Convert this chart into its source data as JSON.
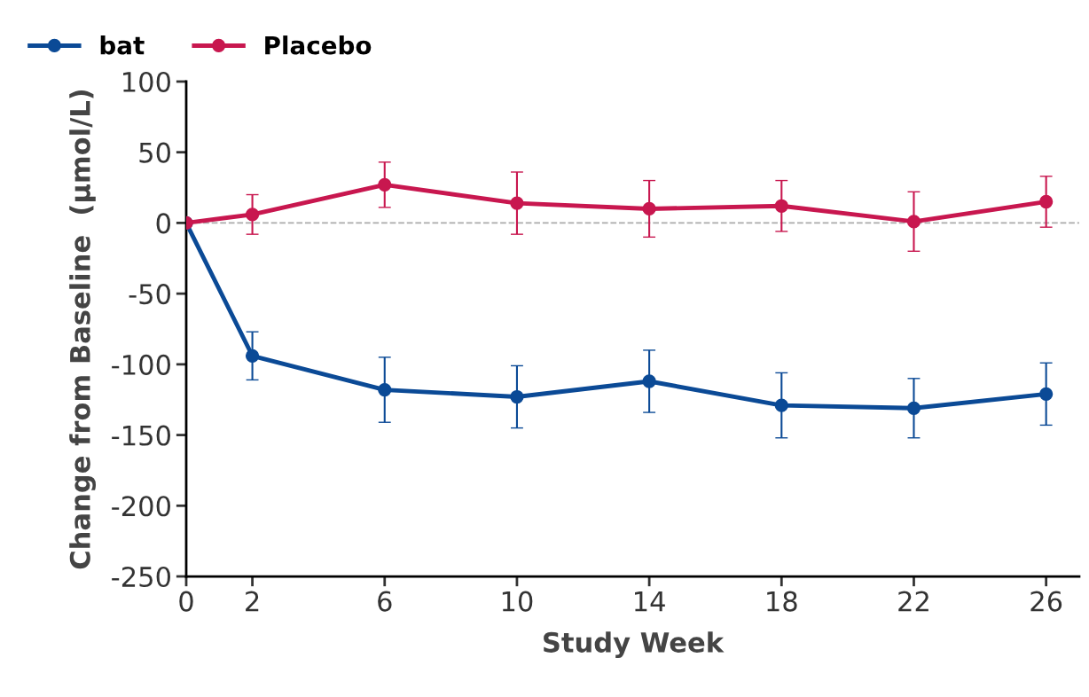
{
  "chart_data": {
    "type": "line",
    "xlabel": "Study Week",
    "ylabel": "Change from Baseline  (µmol/L)",
    "x": [
      0,
      2,
      6,
      10,
      14,
      18,
      22,
      26
    ],
    "xlim": [
      0,
      27
    ],
    "xticks": [
      0,
      2,
      6,
      10,
      14,
      18,
      22,
      26
    ],
    "ylim": [
      -250,
      100
    ],
    "yticks": [
      -250,
      -200,
      -150,
      -100,
      -50,
      0,
      50,
      100
    ],
    "series": [
      {
        "name": "bat",
        "color": "#0b4a96",
        "values": [
          0,
          -94,
          -118,
          -123,
          -112,
          -129,
          -131,
          -121
        ],
        "errors": [
          null,
          17,
          23,
          22,
          22,
          23,
          21,
          22
        ]
      },
      {
        "name": "Placebo",
        "color": "#c8174f",
        "values": [
          0,
          6,
          27,
          14,
          10,
          12,
          1,
          15
        ],
        "errors": [
          null,
          14,
          16,
          22,
          20,
          18,
          21,
          18
        ]
      }
    ],
    "ref_lines": [
      {
        "axis": "y",
        "value": 0,
        "color": "#aaaaaa",
        "line_style": "dashed"
      }
    ],
    "marker": "circle",
    "line_style": "solid",
    "grid": false,
    "legend": "top left"
  }
}
